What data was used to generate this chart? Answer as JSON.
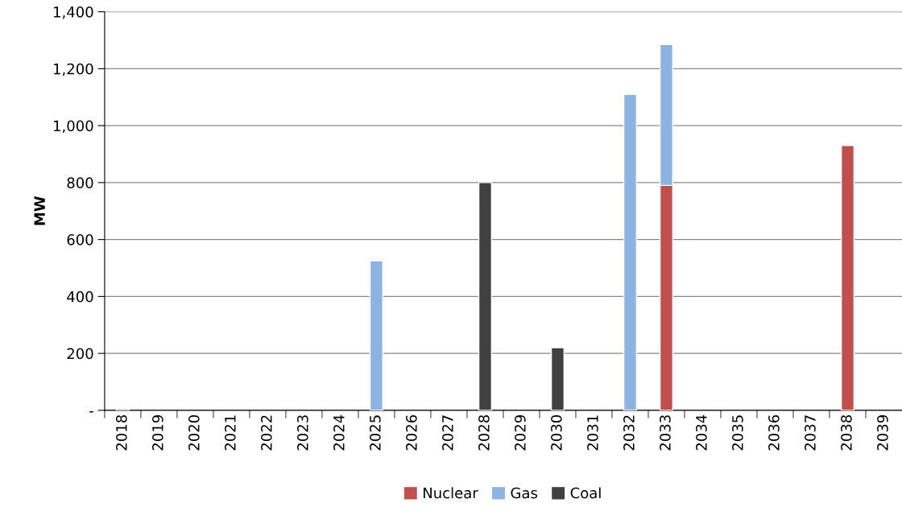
{
  "chart_data": {
    "type": "bar",
    "stacked": true,
    "ylabel": "MW",
    "categories": [
      "2018",
      "2019",
      "2020",
      "2021",
      "2022",
      "2023",
      "2024",
      "2025",
      "2026",
      "2027",
      "2028",
      "2029",
      "2030",
      "2031",
      "2032",
      "2033",
      "2034",
      "2035",
      "2036",
      "2037",
      "2038",
      "2039"
    ],
    "series": [
      {
        "name": "Nuclear",
        "color": "#c0504d",
        "values": [
          null,
          null,
          null,
          null,
          null,
          null,
          null,
          null,
          null,
          null,
          null,
          null,
          null,
          null,
          null,
          790,
          null,
          null,
          null,
          null,
          930,
          null
        ]
      },
      {
        "name": "Gas",
        "color": "#8db3e2",
        "values": [
          null,
          null,
          null,
          null,
          null,
          null,
          null,
          525,
          null,
          null,
          null,
          null,
          null,
          null,
          1110,
          495,
          null,
          null,
          null,
          null,
          null,
          null
        ]
      },
      {
        "name": "Coal",
        "color": "#404040",
        "values": [
          5,
          null,
          null,
          null,
          null,
          null,
          null,
          null,
          null,
          null,
          800,
          null,
          220,
          null,
          null,
          null,
          null,
          null,
          null,
          null,
          null,
          null
        ]
      }
    ],
    "ylim": [
      0,
      1400
    ],
    "yticks": [
      {
        "value": 0,
        "label": "-"
      },
      {
        "value": 200,
        "label": "200"
      },
      {
        "value": 400,
        "label": "400"
      },
      {
        "value": 600,
        "label": "600"
      },
      {
        "value": 800,
        "label": "800"
      },
      {
        "value": 1000,
        "label": "1,000"
      },
      {
        "value": 1200,
        "label": "1,200"
      },
      {
        "value": 1400,
        "label": "1,400"
      }
    ],
    "grid": "y",
    "legend": "bottom"
  }
}
